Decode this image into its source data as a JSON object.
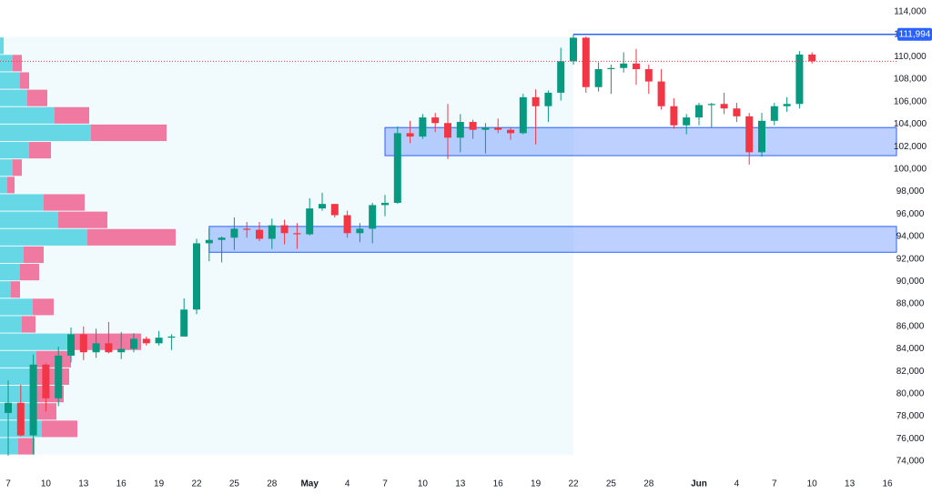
{
  "chart_data": {
    "type": "candlestick",
    "categories": [
      "Apr 7",
      "Apr 8",
      "Apr 9",
      "Apr 10",
      "Apr 11",
      "Apr 12",
      "Apr 13",
      "Apr 14",
      "Apr 15",
      "Apr 16",
      "Apr 17",
      "Apr 18",
      "Apr 19",
      "Apr 20",
      "Apr 21",
      "Apr 22",
      "Apr 23",
      "Apr 24",
      "Apr 25",
      "Apr 26",
      "Apr 27",
      "Apr 28",
      "Apr 29",
      "Apr 30",
      "May 1",
      "May 2",
      "May 3",
      "May 4",
      "May 5",
      "May 6",
      "May 7",
      "May 8",
      "May 9",
      "May 10",
      "May 11",
      "May 12",
      "May 13",
      "May 14",
      "May 15",
      "May 16",
      "May 17",
      "May 18",
      "May 19",
      "May 20",
      "May 21",
      "May 22",
      "May 23",
      "May 24",
      "May 25",
      "May 26",
      "May 27",
      "May 28",
      "May 29",
      "May 30",
      "May 31",
      "Jun 1",
      "Jun 2",
      "Jun 3",
      "Jun 4",
      "Jun 5",
      "Jun 6",
      "Jun 7",
      "Jun 8",
      "Jun 9",
      "Jun 10",
      "Jun 11",
      "Jun 12",
      "Jun 13",
      "Jun 14",
      "Jun 15",
      "Jun 16"
    ],
    "open": [
      78300,
      79200,
      76300,
      82600,
      79600,
      83400,
      85300,
      83700,
      84500,
      83700,
      84000,
      84900,
      84500,
      85000,
      85100,
      87500,
      93400,
      93700,
      93900,
      94700,
      94600,
      93800,
      95000,
      94300,
      94200,
      96500,
      96900,
      95900,
      94300,
      94700,
      96800,
      97000,
      103200,
      102900,
      104600,
      104100,
      102800,
      104200,
      103500,
      103700,
      103500,
      103200,
      106400,
      105600,
      106800,
      109600,
      111700,
      107300,
      108900,
      109000,
      109400,
      108900,
      107800,
      105600,
      103900,
      104600,
      105700,
      105800,
      105400,
      104700,
      101500,
      104300,
      105600,
      105800,
      110200,
      null,
      null,
      null,
      null,
      null,
      null
    ],
    "high": [
      81200,
      80800,
      83500,
      82700,
      84200,
      85900,
      86000,
      85800,
      86400,
      85500,
      85400,
      85100,
      85600,
      85300,
      88500,
      93800,
      94700,
      94000,
      95700,
      95300,
      95300,
      95600,
      95500,
      95200,
      97400,
      97900,
      96900,
      96300,
      95200,
      97000,
      97700,
      103800,
      104300,
      104900,
      105000,
      105800,
      104900,
      104400,
      104100,
      104500,
      103700,
      106700,
      107100,
      107000,
      110800,
      111994,
      111800,
      109500,
      109300,
      110400,
      110700,
      109300,
      108900,
      106300,
      104900,
      105900,
      105900,
      106800,
      105900,
      105000,
      105000,
      105900,
      106400,
      110500,
      110400,
      null,
      null,
      null,
      null,
      null,
      null
    ],
    "low": [
      74500,
      76200,
      74600,
      78400,
      78900,
      82800,
      83000,
      83200,
      83600,
      83100,
      83700,
      84300,
      84300,
      83900,
      85100,
      87100,
      91800,
      91700,
      92800,
      93900,
      93600,
      92900,
      93300,
      92900,
      94100,
      96300,
      95700,
      93900,
      93500,
      93400,
      95800,
      96900,
      102300,
      102700,
      103300,
      100900,
      101500,
      102700,
      101400,
      103200,
      102600,
      103100,
      102200,
      104200,
      106100,
      109300,
      106800,
      106900,
      106700,
      108600,
      107500,
      106700,
      105300,
      103600,
      103100,
      103900,
      103700,
      104900,
      104200,
      100400,
      101100,
      103900,
      105100,
      105400,
      109400,
      null,
      null,
      null,
      null,
      null,
      null
    ],
    "close": [
      79200,
      76300,
      82600,
      79600,
      83400,
      85300,
      83700,
      84500,
      83700,
      84000,
      84900,
      84500,
      85000,
      85100,
      87500,
      93400,
      93700,
      93900,
      94700,
      94600,
      93800,
      95000,
      94300,
      94200,
      96500,
      96900,
      95900,
      94300,
      94700,
      96800,
      97000,
      103200,
      102900,
      104600,
      104100,
      102800,
      104200,
      103500,
      103700,
      103500,
      103200,
      106400,
      105600,
      106800,
      109600,
      111700,
      107300,
      108900,
      109000,
      109400,
      108900,
      107800,
      105600,
      103900,
      104600,
      105700,
      105800,
      105400,
      104700,
      101500,
      104300,
      105600,
      105800,
      110200,
      109600,
      null,
      null,
      null,
      null,
      null,
      null
    ],
    "up_color": "#089981",
    "down_color": "#f23645",
    "ylim": [
      74000,
      114000
    ],
    "yticks": [
      {
        "value": 74000,
        "label": "74,000"
      },
      {
        "value": 76000,
        "label": "76,000"
      },
      {
        "value": 78000,
        "label": "78,000"
      },
      {
        "value": 80000,
        "label": "80,000"
      },
      {
        "value": 82000,
        "label": "82,000"
      },
      {
        "value": 84000,
        "label": "84,000"
      },
      {
        "value": 86000,
        "label": "86,000"
      },
      {
        "value": 88000,
        "label": "88,000"
      },
      {
        "value": 90000,
        "label": "90,000"
      },
      {
        "value": 92000,
        "label": "92,000"
      },
      {
        "value": 94000,
        "label": "94,000"
      },
      {
        "value": 96000,
        "label": "96,000"
      },
      {
        "value": 98000,
        "label": "98,000"
      },
      {
        "value": 100000,
        "label": "100,000"
      },
      {
        "value": 102000,
        "label": "102,000"
      },
      {
        "value": 104000,
        "label": "104,000"
      },
      {
        "value": 106000,
        "label": "106,000"
      },
      {
        "value": 108000,
        "label": "108,000"
      },
      {
        "value": 110000,
        "label": "110,000"
      },
      {
        "value": 112000,
        "label": "112,000"
      },
      {
        "value": 114000,
        "label": "114,000"
      }
    ],
    "xticks": [
      {
        "value": "Apr 7",
        "label": "7"
      },
      {
        "value": "Apr 10",
        "label": "10"
      },
      {
        "value": "Apr 13",
        "label": "13"
      },
      {
        "value": "Apr 16",
        "label": "16"
      },
      {
        "value": "Apr 19",
        "label": "19"
      },
      {
        "value": "Apr 22",
        "label": "22"
      },
      {
        "value": "Apr 25",
        "label": "25"
      },
      {
        "value": "Apr 28",
        "label": "28"
      },
      {
        "value": "May 1",
        "label": "May"
      },
      {
        "value": "May 4",
        "label": "4"
      },
      {
        "value": "May 7",
        "label": "7"
      },
      {
        "value": "May 10",
        "label": "10"
      },
      {
        "value": "May 13",
        "label": "13"
      },
      {
        "value": "May 16",
        "label": "16"
      },
      {
        "value": "May 19",
        "label": "19"
      },
      {
        "value": "May 22",
        "label": "22"
      },
      {
        "value": "May 25",
        "label": "25"
      },
      {
        "value": "May 28",
        "label": "28"
      },
      {
        "value": "Jun 1",
        "label": "Jun"
      },
      {
        "value": "Jun 4",
        "label": "4"
      },
      {
        "value": "Jun 7",
        "label": "7"
      },
      {
        "value": "Jun 10",
        "label": "10"
      },
      {
        "value": "Jun 13",
        "label": "13"
      },
      {
        "value": "Jun 16",
        "label": "16"
      }
    ],
    "level": {
      "from": "May 22",
      "value": 111994,
      "label": "111,994",
      "color": "#2962ff"
    },
    "last_price_color": "#f23645",
    "zones": [
      {
        "from": "May 7",
        "low": 101200,
        "high": 103700
      },
      {
        "from": "Apr 23",
        "low": 92600,
        "high": 94900
      }
    ],
    "zone_color": "#2962ff",
    "profile": {
      "until": "May 22",
      "bins": [
        111800,
        110250,
        108700,
        107150,
        105600,
        104050,
        102500,
        100950,
        99400,
        97850,
        96300,
        94750,
        93200,
        91650,
        90100,
        88550,
        87000,
        85450,
        83900,
        82350,
        80800,
        79250,
        77700,
        76150,
        74600
      ],
      "up": [
        4,
        14,
        22,
        30,
        60,
        100,
        32,
        14,
        8,
        48,
        64,
        96,
        26,
        22,
        12,
        36,
        24,
        82,
        40,
        40,
        35,
        40,
        46,
        20
      ],
      "down": [
        0,
        10,
        10,
        22,
        38,
        83,
        24,
        10,
        8,
        45,
        54,
        97,
        22,
        21,
        10,
        23,
        15,
        73,
        38,
        36,
        35,
        22,
        39,
        18
      ],
      "up_color": "#4dd0e1",
      "down_color": "#f06292"
    }
  }
}
